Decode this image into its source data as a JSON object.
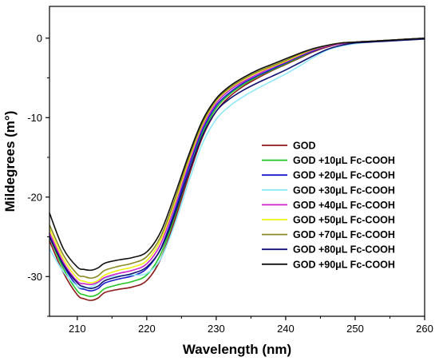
{
  "chart_data": {
    "type": "line",
    "xlabel": "Wavelength (nm)",
    "ylabel": "Mildegrees (m°)",
    "xlim": [
      206,
      260
    ],
    "ylim": [
      -35,
      4
    ],
    "xticks": [
      "210",
      "220",
      "230",
      "240",
      "250",
      "260"
    ],
    "yticks": [
      "0",
      "-10",
      "-20",
      "-30"
    ],
    "grid": false,
    "legend_position": "right",
    "x": [
      206,
      208,
      210,
      211,
      212,
      213,
      214,
      216,
      218,
      220,
      222,
      224,
      226,
      228,
      230,
      232,
      234,
      236,
      238,
      240,
      242,
      244,
      246,
      248,
      250,
      252,
      254,
      256,
      258,
      260
    ],
    "series": [
      {
        "name": "GOD",
        "color": "#8b1a1a",
        "values": [
          -25.5,
          -29.5,
          -32.3,
          -32.8,
          -33.0,
          -32.7,
          -32.0,
          -31.6,
          -31.3,
          -30.5,
          -27.8,
          -23.0,
          -17.5,
          -12.5,
          -9.2,
          -7.3,
          -6.0,
          -5.0,
          -4.1,
          -3.3,
          -2.5,
          -1.7,
          -1.1,
          -0.7,
          -0.5,
          -0.4,
          -0.3,
          -0.2,
          -0.1,
          0.0
        ]
      },
      {
        "name": "GOD +10μL Fc-COOH",
        "color": "#22c422",
        "values": [
          -25.0,
          -29.0,
          -31.8,
          -32.3,
          -32.5,
          -32.2,
          -31.5,
          -31.0,
          -30.6,
          -29.8,
          -27.2,
          -22.5,
          -17.0,
          -12.0,
          -8.8,
          -7.0,
          -5.8,
          -4.8,
          -4.0,
          -3.2,
          -2.4,
          -1.6,
          -1.0,
          -0.7,
          -0.5,
          -0.4,
          -0.3,
          -0.2,
          -0.1,
          0.0
        ]
      },
      {
        "name": "GOD +20μL Fc-COOH",
        "color": "#1a1acd",
        "values": [
          -24.8,
          -28.6,
          -31.2,
          -31.6,
          -31.8,
          -31.5,
          -30.8,
          -30.3,
          -29.9,
          -29.0,
          -26.5,
          -21.8,
          -16.4,
          -11.6,
          -8.5,
          -6.8,
          -5.6,
          -4.7,
          -3.9,
          -3.1,
          -2.3,
          -1.6,
          -1.0,
          -0.7,
          -0.5,
          -0.4,
          -0.3,
          -0.2,
          -0.1,
          0.0
        ]
      },
      {
        "name": "GOD +30μL Fc-COOH",
        "color": "#8fe8f8",
        "values": [
          -26.5,
          -29.4,
          -31.2,
          -31.4,
          -31.3,
          -30.8,
          -30.2,
          -29.9,
          -29.8,
          -29.6,
          -27.8,
          -23.5,
          -18.2,
          -13.3,
          -10.2,
          -8.5,
          -7.3,
          -6.3,
          -5.4,
          -4.5,
          -3.5,
          -2.4,
          -1.5,
          -1.0,
          -0.7,
          -0.5,
          -0.4,
          -0.3,
          -0.2,
          -0.1
        ]
      },
      {
        "name": "GOD +40μL Fc-COOH",
        "color": "#cc22cc",
        "values": [
          -24.5,
          -28.2,
          -30.6,
          -30.9,
          -31.0,
          -30.7,
          -30.1,
          -29.6,
          -29.2,
          -28.4,
          -25.9,
          -21.2,
          -15.9,
          -11.2,
          -8.2,
          -6.5,
          -5.4,
          -4.5,
          -3.7,
          -3.0,
          -2.2,
          -1.5,
          -1.0,
          -0.7,
          -0.5,
          -0.4,
          -0.3,
          -0.2,
          -0.1,
          0.0
        ]
      },
      {
        "name": "GOD +50μL Fc-COOH",
        "color": "#f2f21a",
        "values": [
          -24.0,
          -27.8,
          -30.2,
          -30.6,
          -30.8,
          -30.5,
          -29.8,
          -29.2,
          -28.8,
          -28.0,
          -25.4,
          -20.8,
          -15.5,
          -10.9,
          -7.9,
          -6.3,
          -5.2,
          -4.3,
          -3.6,
          -2.9,
          -2.1,
          -1.4,
          -0.9,
          -0.6,
          -0.5,
          -0.4,
          -0.3,
          -0.2,
          -0.1,
          0.0
        ]
      },
      {
        "name": "GOD +70μL Fc-COOH",
        "color": "#8a8a22",
        "values": [
          -23.5,
          -27.3,
          -29.7,
          -30.0,
          -30.2,
          -29.9,
          -29.2,
          -28.7,
          -28.3,
          -27.5,
          -25.0,
          -20.4,
          -15.2,
          -10.7,
          -7.8,
          -6.2,
          -5.1,
          -4.2,
          -3.5,
          -2.8,
          -2.0,
          -1.4,
          -0.9,
          -0.6,
          -0.5,
          -0.4,
          -0.3,
          -0.2,
          -0.1,
          0.0
        ]
      },
      {
        "name": "GOD +80μL Fc-COOH",
        "color": "#101070",
        "values": [
          -25.0,
          -28.5,
          -30.8,
          -31.3,
          -31.5,
          -31.2,
          -30.5,
          -30.0,
          -29.6,
          -28.8,
          -26.6,
          -22.2,
          -17.0,
          -12.3,
          -9.2,
          -7.6,
          -6.5,
          -5.6,
          -4.8,
          -4.0,
          -3.1,
          -2.2,
          -1.4,
          -0.9,
          -0.6,
          -0.5,
          -0.4,
          -0.3,
          -0.2,
          -0.1
        ]
      },
      {
        "name": "GOD +90μL Fc-COOH",
        "color": "#111111",
        "values": [
          -22.0,
          -26.5,
          -28.8,
          -29.1,
          -29.2,
          -28.9,
          -28.3,
          -27.9,
          -27.6,
          -26.9,
          -24.4,
          -19.8,
          -14.8,
          -10.4,
          -7.6,
          -6.0,
          -4.9,
          -4.0,
          -3.3,
          -2.6,
          -1.9,
          -1.3,
          -0.9,
          -0.6,
          -0.5,
          -0.4,
          -0.3,
          -0.2,
          -0.1,
          0.0
        ]
      }
    ]
  }
}
